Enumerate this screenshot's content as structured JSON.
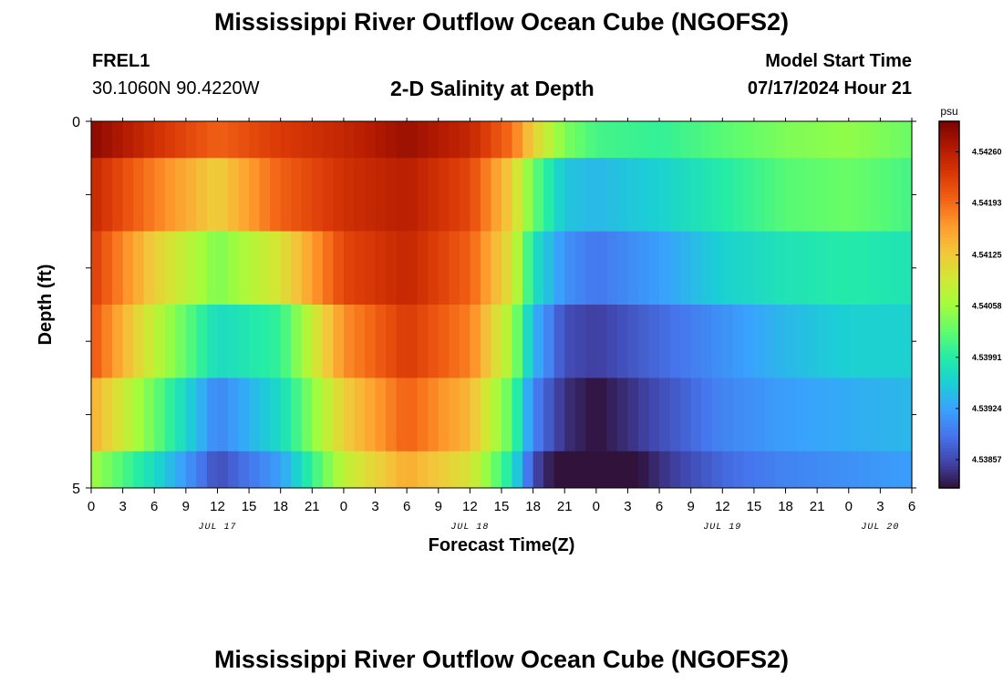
{
  "header": {
    "title": "Mississippi River Outflow Ocean Cube (NGOFS2)",
    "station_id": "FREL1",
    "coordinates": "30.1060N  90.4220W",
    "subtitle": "2-D Salinity at Depth",
    "model_start_label": "Model Start Time",
    "model_start_value": "07/17/2024 Hour 21"
  },
  "footer": {
    "title": "Mississippi River Outflow Ocean Cube (NGOFS2)"
  },
  "chart_data": {
    "type": "heatmap",
    "title": "2-D Salinity at Depth",
    "xlabel": "Forecast Time(Z)",
    "ylabel": "Depth (ft)",
    "colorbar_unit": "psu",
    "colorbar_ticks": [
      "4.54260",
      "4.54193",
      "4.54125",
      "4.54058",
      "4.53991",
      "4.53924",
      "4.53857"
    ],
    "colorbar_range": [
      4.5382,
      4.543
    ],
    "x_tick_labels": [
      "0",
      "3",
      "6",
      "9",
      "12",
      "15",
      "18",
      "21",
      "0",
      "3",
      "6",
      "9",
      "12",
      "15",
      "18",
      "21",
      "0",
      "3",
      "6",
      "9",
      "12",
      "15",
      "18",
      "21",
      "0",
      "3",
      "6"
    ],
    "date_labels": [
      {
        "label": "JUL 17",
        "hour": 12
      },
      {
        "label": "JUL 18",
        "hour": 36
      },
      {
        "label": "JUL 19",
        "hour": 60
      },
      {
        "label": "JUL 20",
        "hour": 75
      }
    ],
    "x_range_hours": [
      0,
      78
    ],
    "y_range": [
      0,
      5
    ],
    "y_tick_labels": [
      "0",
      "5"
    ],
    "depth_rows": [
      "0-0.5",
      "0.5-1.5",
      "1.5-2.5",
      "2.5-3.5",
      "3.5-4.5",
      "4.5-5"
    ],
    "time_key_hours": [
      0,
      6,
      12,
      18,
      24,
      30,
      36,
      40,
      42,
      45,
      48,
      54,
      60,
      66,
      72,
      78
    ],
    "salinity_rows": [
      [
        4.5429,
        4.5424,
        4.542,
        4.5423,
        4.5425,
        4.5428,
        4.5425,
        4.5419,
        4.5412,
        4.5404,
        4.5401,
        4.54,
        4.5402,
        4.5404,
        4.5405,
        4.5403
      ],
      [
        4.5425,
        4.5418,
        4.5412,
        4.542,
        4.5424,
        4.5426,
        4.5422,
        4.5412,
        4.5403,
        4.5395,
        4.5394,
        4.5396,
        4.5399,
        4.5402,
        4.5403,
        4.5401
      ],
      [
        4.5423,
        4.5412,
        4.5404,
        4.541,
        4.5422,
        4.5425,
        4.542,
        4.541,
        4.5398,
        4.5391,
        4.5389,
        4.5392,
        4.5396,
        4.5398,
        4.5399,
        4.5398
      ],
      [
        4.5421,
        4.5408,
        4.5397,
        4.54,
        4.5417,
        4.5423,
        4.5418,
        4.5406,
        4.5394,
        4.5386,
        4.5385,
        4.5388,
        4.5391,
        4.5394,
        4.5396,
        4.5396
      ],
      [
        4.5415,
        4.5403,
        4.539,
        4.5397,
        4.5412,
        4.542,
        4.5414,
        4.5402,
        4.539,
        4.5384,
        4.5382,
        4.5386,
        4.539,
        4.5392,
        4.5393,
        4.5394
      ],
      [
        4.5406,
        4.5397,
        4.5386,
        4.5392,
        4.5408,
        4.5415,
        4.541,
        4.5398,
        4.5386,
        4.538,
        4.5378,
        4.5384,
        4.5388,
        4.539,
        4.5391,
        4.5392
      ]
    ],
    "colormap": [
      "#30123b",
      "#4145ab",
      "#4675ed",
      "#39a2fc",
      "#1bcfd4",
      "#24eca6",
      "#61fc6c",
      "#a4fc3b",
      "#d1e834",
      "#f3c63a",
      "#fe9b2d",
      "#f36315",
      "#d93806",
      "#b11901",
      "#7a0402"
    ]
  }
}
